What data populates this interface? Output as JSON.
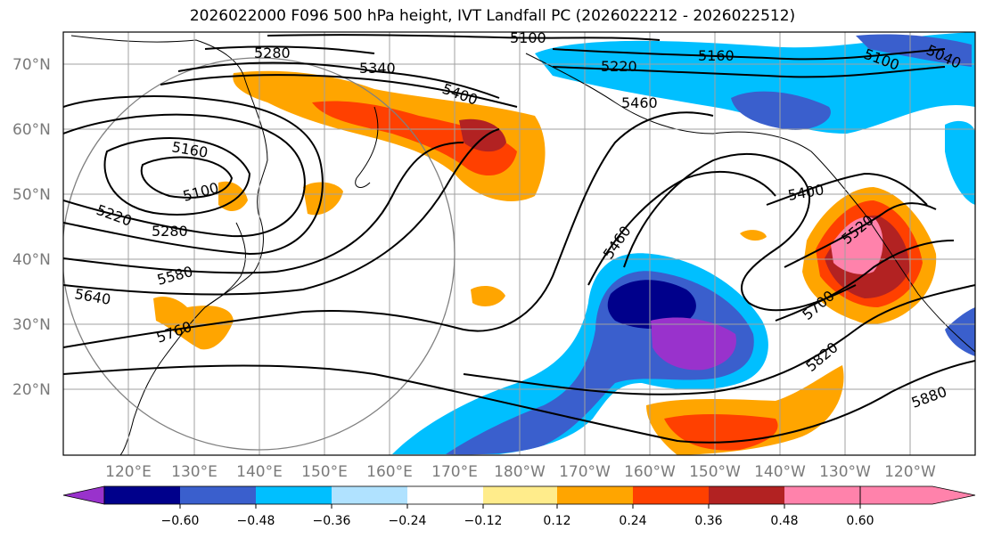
{
  "title": "2026022000 F096 500 hPa height, IVT Landfall PC (2026022212 - 2026022512)",
  "lat_labels": [
    "70°N",
    "60°N",
    "50°N",
    "40°N",
    "30°N",
    "20°N"
  ],
  "lon_labels": [
    "120°E",
    "130°E",
    "140°E",
    "150°E",
    "160°E",
    "170°E",
    "180°W",
    "170°W",
    "160°W",
    "150°W",
    "140°W",
    "130°W",
    "120°W"
  ],
  "contour_labels": [
    "5100",
    "5280",
    "5340",
    "5400",
    "5160",
    "5220",
    "5460",
    "5040",
    "5100",
    "5160",
    "5100",
    "5220",
    "5280",
    "5580",
    "5640",
    "5760",
    "5460",
    "5400",
    "5520",
    "5700",
    "5820",
    "5880"
  ],
  "colorbar": {
    "ticks": [
      "−0.60",
      "−0.48",
      "−0.36",
      "−0.24",
      "−0.12",
      "0.12",
      "0.24",
      "0.36",
      "0.48",
      "0.60"
    ],
    "colors": [
      "#9932cc",
      "#00008b",
      "#3a5fcd",
      "#00bfff",
      "#b0e2ff",
      "#ffffff",
      "#ffec8b",
      "#ffa500",
      "#ff4000",
      "#b22222",
      "#ff82ab"
    ]
  }
}
